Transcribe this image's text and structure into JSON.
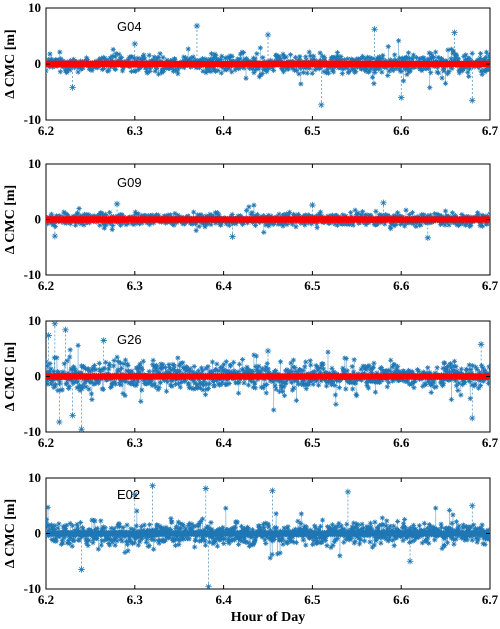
{
  "colors": {
    "scatter": "#1f77b4",
    "reference": "#ff0000",
    "axes": "#000000"
  },
  "xlabel": "Hour of Day",
  "chart_data": [
    {
      "type": "scatter",
      "annotation": "G04",
      "ylabel": "Δ CMC [m]",
      "xlim": [
        6.2,
        6.7
      ],
      "ylim": [
        -10,
        10
      ],
      "xticks": [
        "6.2",
        "6.3",
        "6.4",
        "6.5",
        "6.6",
        "6.7"
      ],
      "yticks": [
        "10",
        "0",
        "-10"
      ],
      "series": [
        {
          "marker": "asterisk",
          "color": "#1f77b4",
          "amplitude": 2.0,
          "spread_end": 3.0,
          "outliers": [
            [
              6.37,
              6.8
            ],
            [
              6.45,
              5.2
            ],
            [
              6.51,
              -7.3
            ],
            [
              6.57,
              6.2
            ],
            [
              6.66,
              5.6
            ],
            [
              6.68,
              -6.5
            ],
            [
              6.3,
              3.6
            ],
            [
              6.23,
              -4.2
            ],
            [
              6.6,
              -6.0
            ]
          ]
        },
        {
          "marker": "asterisk",
          "color": "#ff0000",
          "value": 0
        }
      ]
    },
    {
      "type": "scatter",
      "annotation": "G09",
      "ylabel": "Δ CMC [m]",
      "xlim": [
        6.2,
        6.7
      ],
      "ylim": [
        -10,
        10
      ],
      "xticks": [
        "6.2",
        "6.3",
        "6.4",
        "6.5",
        "6.6",
        "6.7"
      ],
      "yticks": [
        "10",
        "0",
        "-10"
      ],
      "series": [
        {
          "marker": "asterisk",
          "color": "#1f77b4",
          "amplitude": 1.6,
          "spread_end": 1.6,
          "outliers": [
            [
              6.28,
              2.8
            ],
            [
              6.41,
              -3.1
            ],
            [
              6.58,
              3.0
            ],
            [
              6.63,
              -3.3
            ],
            [
              6.21,
              -3.0
            ],
            [
              6.5,
              2.6
            ]
          ]
        },
        {
          "marker": "asterisk",
          "color": "#ff0000",
          "value": 0
        }
      ]
    },
    {
      "type": "scatter",
      "annotation": "G26",
      "ylabel": "Δ CMC [m]",
      "xlim": [
        6.2,
        6.7
      ],
      "ylim": [
        -10,
        10
      ],
      "xticks": [
        "6.2",
        "6.3",
        "6.4",
        "6.5",
        "6.6",
        "6.7"
      ],
      "yticks": [
        "10",
        "0",
        "-10"
      ],
      "series": [
        {
          "marker": "asterisk",
          "color": "#1f77b4",
          "amplitude": 4.5,
          "spread_end": 3.0,
          "outliers": [
            [
              6.21,
              9.5
            ],
            [
              6.222,
              8.4
            ],
            [
              6.203,
              7.4
            ],
            [
              6.24,
              -9.5
            ],
            [
              6.215,
              -8.2
            ],
            [
              6.265,
              6.5
            ],
            [
              6.23,
              -7.0
            ],
            [
              6.68,
              -7.5
            ],
            [
              6.69,
              5.8
            ],
            [
              6.45,
              4.6
            ]
          ]
        },
        {
          "marker": "asterisk",
          "color": "#ff0000",
          "value": 0
        }
      ]
    },
    {
      "type": "scatter",
      "annotation": "E02",
      "ylabel": "Δ CMC [m]",
      "xlim": [
        6.2,
        6.7
      ],
      "ylim": [
        -10,
        10
      ],
      "xticks": [
        "6.2",
        "6.3",
        "6.4",
        "6.5",
        "6.6",
        "6.7"
      ],
      "yticks": [
        "10",
        "0",
        "-10"
      ],
      "series": [
        {
          "marker": "asterisk",
          "color": "#1f77b4",
          "amplitude": 3.2,
          "spread_end": 2.8,
          "outliers": [
            [
              6.32,
              8.6
            ],
            [
              6.38,
              8.1
            ],
            [
              6.455,
              7.7
            ],
            [
              6.54,
              7.5
            ],
            [
              6.383,
              -9.6
            ],
            [
              6.24,
              -6.5
            ],
            [
              6.3,
              7.0
            ],
            [
              6.61,
              -5.0
            ],
            [
              6.68,
              5.0
            ]
          ]
        },
        {
          "marker": "asterisk",
          "color": "#1f77b4",
          "value": 0
        }
      ]
    }
  ]
}
